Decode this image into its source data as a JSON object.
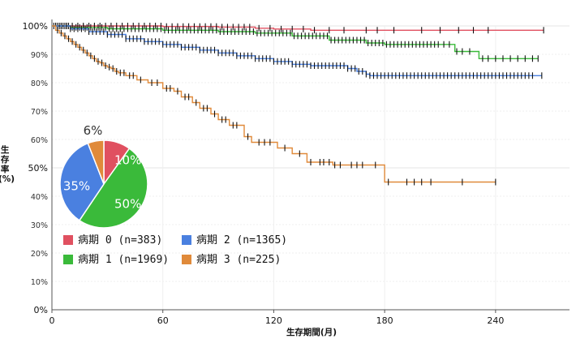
{
  "chart_data": [
    {
      "type": "line",
      "subtype": "kaplan-meier step curves with censor ticks",
      "xlabel": "生存期間(月)",
      "ylabel": "生存率\n(%)",
      "xlim": [
        0,
        280
      ],
      "ylim": [
        0,
        100
      ],
      "x_ticks": [
        "0",
        "60",
        "120",
        "180",
        "240"
      ],
      "y_ticks": [
        "0%",
        "10%",
        "20%",
        "30%",
        "40%",
        "50%",
        "60%",
        "70%",
        "80%",
        "90%",
        "100%"
      ],
      "y_major_ticks": [
        "0%",
        "50%",
        "100%"
      ],
      "grid": true,
      "legend_position": "lower-left",
      "series": [
        {
          "name": "病期 0 (n=383)",
          "color": "#e05060",
          "steps": [
            [
              0,
              100
            ],
            [
              20,
              100
            ],
            [
              60,
              99.8
            ],
            [
              90,
              99.6
            ],
            [
              110,
              99.2
            ],
            [
              120,
              98.9
            ],
            [
              140,
              98.5
            ],
            [
              260,
              98.5
            ],
            [
              266,
              98.5
            ]
          ],
          "censor_x": [
            2,
            5,
            8,
            11,
            14,
            17,
            20,
            23,
            26,
            29,
            32,
            35,
            38,
            41,
            44,
            47,
            50,
            53,
            56,
            59,
            62,
            65,
            68,
            71,
            74,
            77,
            80,
            83,
            86,
            89,
            92,
            95,
            98,
            101,
            104,
            107,
            112,
            118,
            124,
            130,
            136,
            142,
            150,
            158,
            170,
            176,
            185,
            200,
            210,
            220,
            228,
            236,
            266
          ]
        },
        {
          "name": "病期 1 (n=1969)",
          "color": "#3aba3a",
          "steps": [
            [
              0,
              100
            ],
            [
              10,
              99.5
            ],
            [
              30,
              99
            ],
            [
              60,
              98.5
            ],
            [
              90,
              98
            ],
            [
              110,
              97.5
            ],
            [
              130,
              96.5
            ],
            [
              150,
              95
            ],
            [
              170,
              94
            ],
            [
              180,
              93.5
            ],
            [
              217,
              93.5
            ],
            [
              218,
              91
            ],
            [
              230,
              91
            ],
            [
              231,
              88.5
            ],
            [
              263,
              88.5
            ]
          ],
          "censor_x": [
            1,
            3,
            5,
            7,
            9,
            11,
            13,
            15,
            17,
            19,
            21,
            23,
            25,
            27,
            29,
            31,
            33,
            35,
            37,
            39,
            41,
            43,
            45,
            47,
            49,
            51,
            53,
            55,
            57,
            59,
            61,
            63,
            65,
            67,
            69,
            71,
            73,
            75,
            77,
            79,
            81,
            83,
            85,
            87,
            89,
            91,
            93,
            95,
            97,
            99,
            101,
            103,
            105,
            107,
            109,
            111,
            113,
            115,
            117,
            119,
            121,
            123,
            125,
            127,
            129,
            131,
            133,
            135,
            137,
            139,
            141,
            143,
            145,
            147,
            149,
            151,
            153,
            155,
            157,
            159,
            161,
            163,
            165,
            167,
            169,
            171,
            173,
            175,
            177,
            179,
            181,
            183,
            185,
            187,
            189,
            191,
            193,
            195,
            197,
            199,
            201,
            203,
            205,
            207,
            209,
            212,
            215,
            219,
            222,
            226,
            233,
            236,
            240,
            244,
            248,
            252,
            256,
            260,
            263
          ]
        },
        {
          "name": "病期 2 (n=1365)",
          "color": "#4a80e0",
          "steps": [
            [
              0,
              100
            ],
            [
              10,
              99
            ],
            [
              20,
              98
            ],
            [
              30,
              97
            ],
            [
              40,
              95.5
            ],
            [
              50,
              94.5
            ],
            [
              60,
              93.5
            ],
            [
              70,
              92.5
            ],
            [
              80,
              91.5
            ],
            [
              90,
              90.5
            ],
            [
              100,
              89.5
            ],
            [
              110,
              88.5
            ],
            [
              120,
              87.5
            ],
            [
              130,
              86.5
            ],
            [
              140,
              86
            ],
            [
              160,
              85
            ],
            [
              165,
              84
            ],
            [
              170,
              83
            ],
            [
              172,
              82.5
            ],
            [
              265,
              82.5
            ]
          ],
          "censor_x": [
            2,
            4,
            6,
            8,
            10,
            12,
            14,
            16,
            18,
            20,
            22,
            24,
            26,
            28,
            30,
            32,
            34,
            36,
            38,
            40,
            42,
            44,
            46,
            48,
            50,
            52,
            54,
            56,
            58,
            60,
            62,
            64,
            66,
            68,
            70,
            72,
            74,
            76,
            78,
            80,
            82,
            84,
            86,
            88,
            90,
            92,
            94,
            96,
            98,
            100,
            102,
            104,
            106,
            108,
            110,
            112,
            114,
            116,
            118,
            120,
            122,
            124,
            126,
            128,
            130,
            132,
            134,
            136,
            138,
            140,
            142,
            144,
            146,
            148,
            150,
            152,
            154,
            156,
            158,
            160,
            162,
            164,
            166,
            168,
            170,
            172,
            174,
            176,
            178,
            180,
            182,
            184,
            186,
            188,
            190,
            192,
            194,
            196,
            198,
            200,
            202,
            204,
            206,
            208,
            210,
            212,
            214,
            216,
            218,
            220,
            222,
            224,
            226,
            228,
            230,
            232,
            234,
            236,
            238,
            240,
            242,
            244,
            246,
            248,
            250,
            252,
            254,
            256,
            258,
            260,
            265
          ]
        },
        {
          "name": "病期 3 (n=225)",
          "color": "#e08a3a",
          "steps": [
            [
              0,
              100
            ],
            [
              2,
              98.5
            ],
            [
              4,
              97.5
            ],
            [
              6,
              96.5
            ],
            [
              8,
              95.5
            ],
            [
              10,
              94.5
            ],
            [
              12,
              93.5
            ],
            [
              14,
              92.5
            ],
            [
              16,
              91.5
            ],
            [
              18,
              90.5
            ],
            [
              20,
              89.5
            ],
            [
              22,
              88.5
            ],
            [
              24,
              87.5
            ],
            [
              26,
              87
            ],
            [
              28,
              86
            ],
            [
              30,
              85.5
            ],
            [
              32,
              85
            ],
            [
              34,
              84
            ],
            [
              36,
              83.5
            ],
            [
              40,
              82.5
            ],
            [
              46,
              81
            ],
            [
              52,
              80
            ],
            [
              60,
              78
            ],
            [
              66,
              77
            ],
            [
              70,
              75
            ],
            [
              76,
              73
            ],
            [
              80,
              71
            ],
            [
              86,
              69
            ],
            [
              90,
              67
            ],
            [
              96,
              65
            ],
            [
              104,
              61
            ],
            [
              108,
              59
            ],
            [
              122,
              57
            ],
            [
              130,
              55
            ],
            [
              138,
              52
            ],
            [
              152,
              51
            ],
            [
              180,
              45
            ],
            [
              240,
              45
            ]
          ],
          "censor_x": [
            3,
            5,
            7,
            9,
            11,
            13,
            15,
            17,
            19,
            21,
            23,
            25,
            27,
            29,
            31,
            33,
            35,
            37,
            39,
            42,
            44,
            48,
            54,
            57,
            62,
            64,
            68,
            72,
            74,
            78,
            82,
            84,
            88,
            92,
            94,
            98,
            100,
            106,
            112,
            115,
            118,
            126,
            134,
            140,
            145,
            147,
            150,
            153,
            156,
            162,
            165,
            168,
            175,
            182,
            192,
            196,
            200,
            205,
            222,
            240
          ]
        }
      ]
    },
    {
      "type": "pie",
      "slices": [
        {
          "label": "10%",
          "value": 10,
          "color": "#e05060"
        },
        {
          "label": "50%",
          "value": 50,
          "color": "#3aba3a"
        },
        {
          "label": "35%",
          "value": 35,
          "color": "#4a80e0"
        },
        {
          "label": "6%",
          "value": 6,
          "color": "#e08a3a"
        }
      ]
    }
  ]
}
